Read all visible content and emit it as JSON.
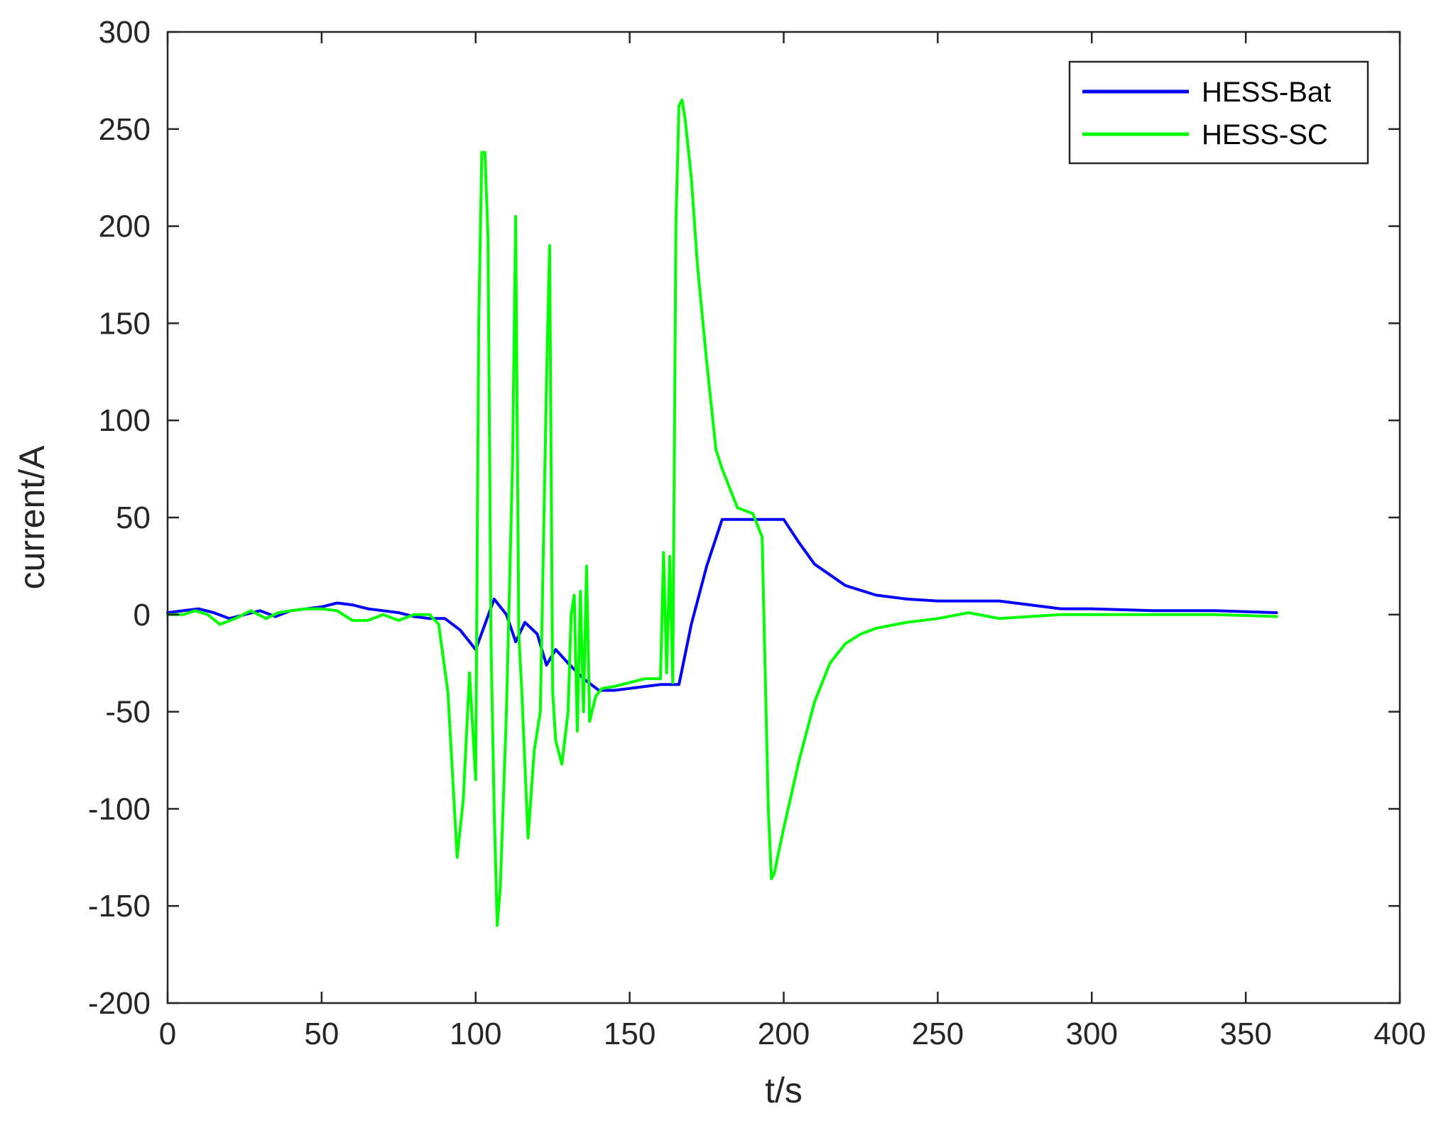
{
  "chart_data": {
    "type": "line",
    "title": "",
    "xlabel": "t/s",
    "ylabel": "current/A",
    "xlim": [
      0,
      400
    ],
    "ylim": [
      -200,
      300
    ],
    "xticks": [
      0,
      50,
      100,
      150,
      200,
      250,
      300,
      350,
      400
    ],
    "yticks": [
      -200,
      -150,
      -100,
      -50,
      0,
      50,
      100,
      150,
      200,
      250,
      300
    ],
    "grid": false,
    "legend_position": "top-right",
    "series": [
      {
        "name": "HESS-Bat",
        "color": "#0000ff",
        "x": [
          0,
          5,
          10,
          15,
          20,
          25,
          30,
          35,
          40,
          45,
          50,
          55,
          60,
          65,
          70,
          75,
          80,
          85,
          90,
          95,
          100,
          103,
          106,
          110,
          113,
          116,
          120,
          123,
          126,
          130,
          135,
          140,
          145,
          150,
          155,
          160,
          163,
          166,
          170,
          175,
          180,
          185,
          190,
          195,
          200,
          205,
          210,
          220,
          230,
          240,
          250,
          260,
          270,
          280,
          290,
          300,
          320,
          340,
          360
        ],
        "y": [
          1,
          2,
          3,
          1,
          -2,
          0,
          2,
          -1,
          2,
          3,
          4,
          6,
          5,
          3,
          2,
          1,
          -1,
          -2,
          -2,
          -8,
          -18,
          -5,
          8,
          0,
          -14,
          -4,
          -10,
          -26,
          -18,
          -25,
          -33,
          -39,
          -39,
          -38,
          -37,
          -36,
          -36,
          -36,
          -5,
          25,
          49,
          49,
          49,
          49,
          49,
          37,
          26,
          15,
          10,
          8,
          7,
          7,
          7,
          5,
          3,
          3,
          2,
          2,
          1
        ]
      },
      {
        "name": "HESS-SC",
        "color": "#00ff00",
        "x": [
          0,
          5,
          9,
          13,
          17,
          22,
          27,
          32,
          36,
          40,
          45,
          50,
          55,
          60,
          65,
          70,
          75,
          80,
          85,
          88,
          91,
          94,
          96,
          98,
          100,
          101,
          102,
          103,
          104,
          105,
          106,
          107,
          108,
          110,
          112,
          113,
          114,
          115,
          117,
          119,
          121,
          123,
          124,
          125,
          126,
          128,
          130,
          131,
          132,
          133,
          134,
          135,
          136,
          137,
          139,
          141,
          145,
          150,
          155,
          160,
          161,
          162,
          163,
          164,
          165,
          166,
          167,
          168,
          170,
          172,
          175,
          178,
          180,
          185,
          190,
          193,
          195,
          196,
          197,
          198,
          200,
          205,
          210,
          215,
          220,
          225,
          230,
          240,
          250,
          260,
          270,
          280,
          290,
          300,
          320,
          340,
          360
        ],
        "y": [
          0,
          0,
          2,
          0,
          -5,
          -2,
          2,
          -2,
          1,
          2,
          3,
          3,
          2,
          -3,
          -3,
          0,
          -3,
          0,
          0,
          -5,
          -40,
          -125,
          -95,
          -30,
          -85,
          150,
          238,
          238,
          195,
          -15,
          -100,
          -160,
          -140,
          -50,
          80,
          205,
          -10,
          -40,
          -115,
          -70,
          -50,
          120,
          190,
          -40,
          -65,
          -77,
          -50,
          0,
          10,
          -60,
          12,
          -50,
          25,
          -55,
          -42,
          -38,
          -37,
          -35,
          -33,
          -33,
          32,
          -30,
          30,
          -35,
          200,
          262,
          265,
          255,
          225,
          180,
          130,
          85,
          75,
          55,
          52,
          40,
          -100,
          -136,
          -133,
          -125,
          -110,
          -75,
          -45,
          -25,
          -15,
          -10,
          -7,
          -4,
          -2,
          1,
          -2,
          -1,
          0,
          0,
          0,
          0,
          -1
        ]
      }
    ]
  }
}
